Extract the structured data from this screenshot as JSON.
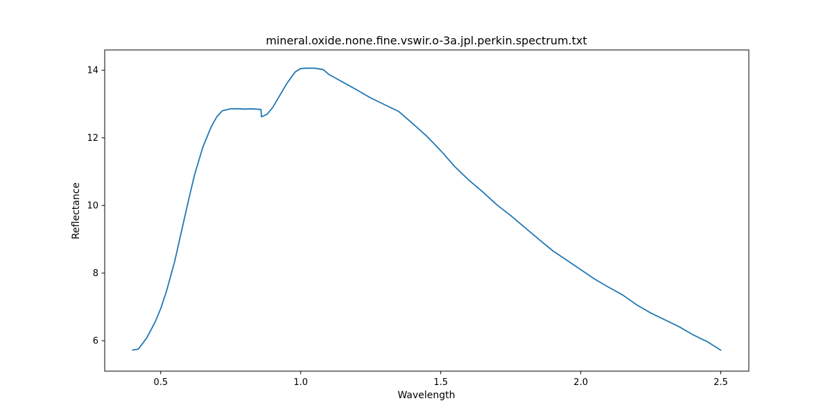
{
  "chart_data": {
    "type": "line",
    "title": "mineral.oxide.none.fine.vswir.o-3a.jpl.perkin.spectrum.txt",
    "xlabel": "Wavelength",
    "ylabel": "Reflectance",
    "xlim": [
      0.3,
      2.6
    ],
    "ylim": [
      5.1,
      14.6
    ],
    "xticks": [
      0.5,
      1.0,
      1.5,
      2.0,
      2.5
    ],
    "xtick_labels": [
      "0.5",
      "1.0",
      "1.5",
      "2.0",
      "2.5"
    ],
    "yticks": [
      6,
      8,
      10,
      12,
      14
    ],
    "ytick_labels": [
      "6",
      "8",
      "10",
      "12",
      "14"
    ],
    "grid": false,
    "series": [
      {
        "color": "#1f77b4",
        "x": [
          0.4,
          0.42,
          0.45,
          0.48,
          0.5,
          0.52,
          0.55,
          0.58,
          0.6,
          0.62,
          0.65,
          0.68,
          0.7,
          0.72,
          0.75,
          0.78,
          0.8,
          0.82,
          0.84,
          0.858,
          0.86,
          0.87,
          0.88,
          0.9,
          0.92,
          0.95,
          0.98,
          1.0,
          1.02,
          1.05,
          1.08,
          1.1,
          1.15,
          1.2,
          1.25,
          1.3,
          1.35,
          1.4,
          1.45,
          1.5,
          1.55,
          1.6,
          1.65,
          1.7,
          1.75,
          1.8,
          1.85,
          1.9,
          1.95,
          2.0,
          2.05,
          2.1,
          2.15,
          2.2,
          2.25,
          2.3,
          2.35,
          2.4,
          2.45,
          2.5
        ],
        "y": [
          5.72,
          5.75,
          6.08,
          6.55,
          6.95,
          7.45,
          8.35,
          9.45,
          10.18,
          10.88,
          11.72,
          12.32,
          12.62,
          12.8,
          12.86,
          12.86,
          12.85,
          12.86,
          12.85,
          12.84,
          12.62,
          12.66,
          12.7,
          12.9,
          13.18,
          13.6,
          13.95,
          14.05,
          14.06,
          14.06,
          14.02,
          13.88,
          13.65,
          13.42,
          13.18,
          12.98,
          12.78,
          12.42,
          12.05,
          11.62,
          11.15,
          10.75,
          10.4,
          10.02,
          9.7,
          9.35,
          9.0,
          8.66,
          8.38,
          8.1,
          7.82,
          7.58,
          7.35,
          7.06,
          6.82,
          6.62,
          6.42,
          6.18,
          5.98,
          5.72
        ]
      }
    ]
  }
}
